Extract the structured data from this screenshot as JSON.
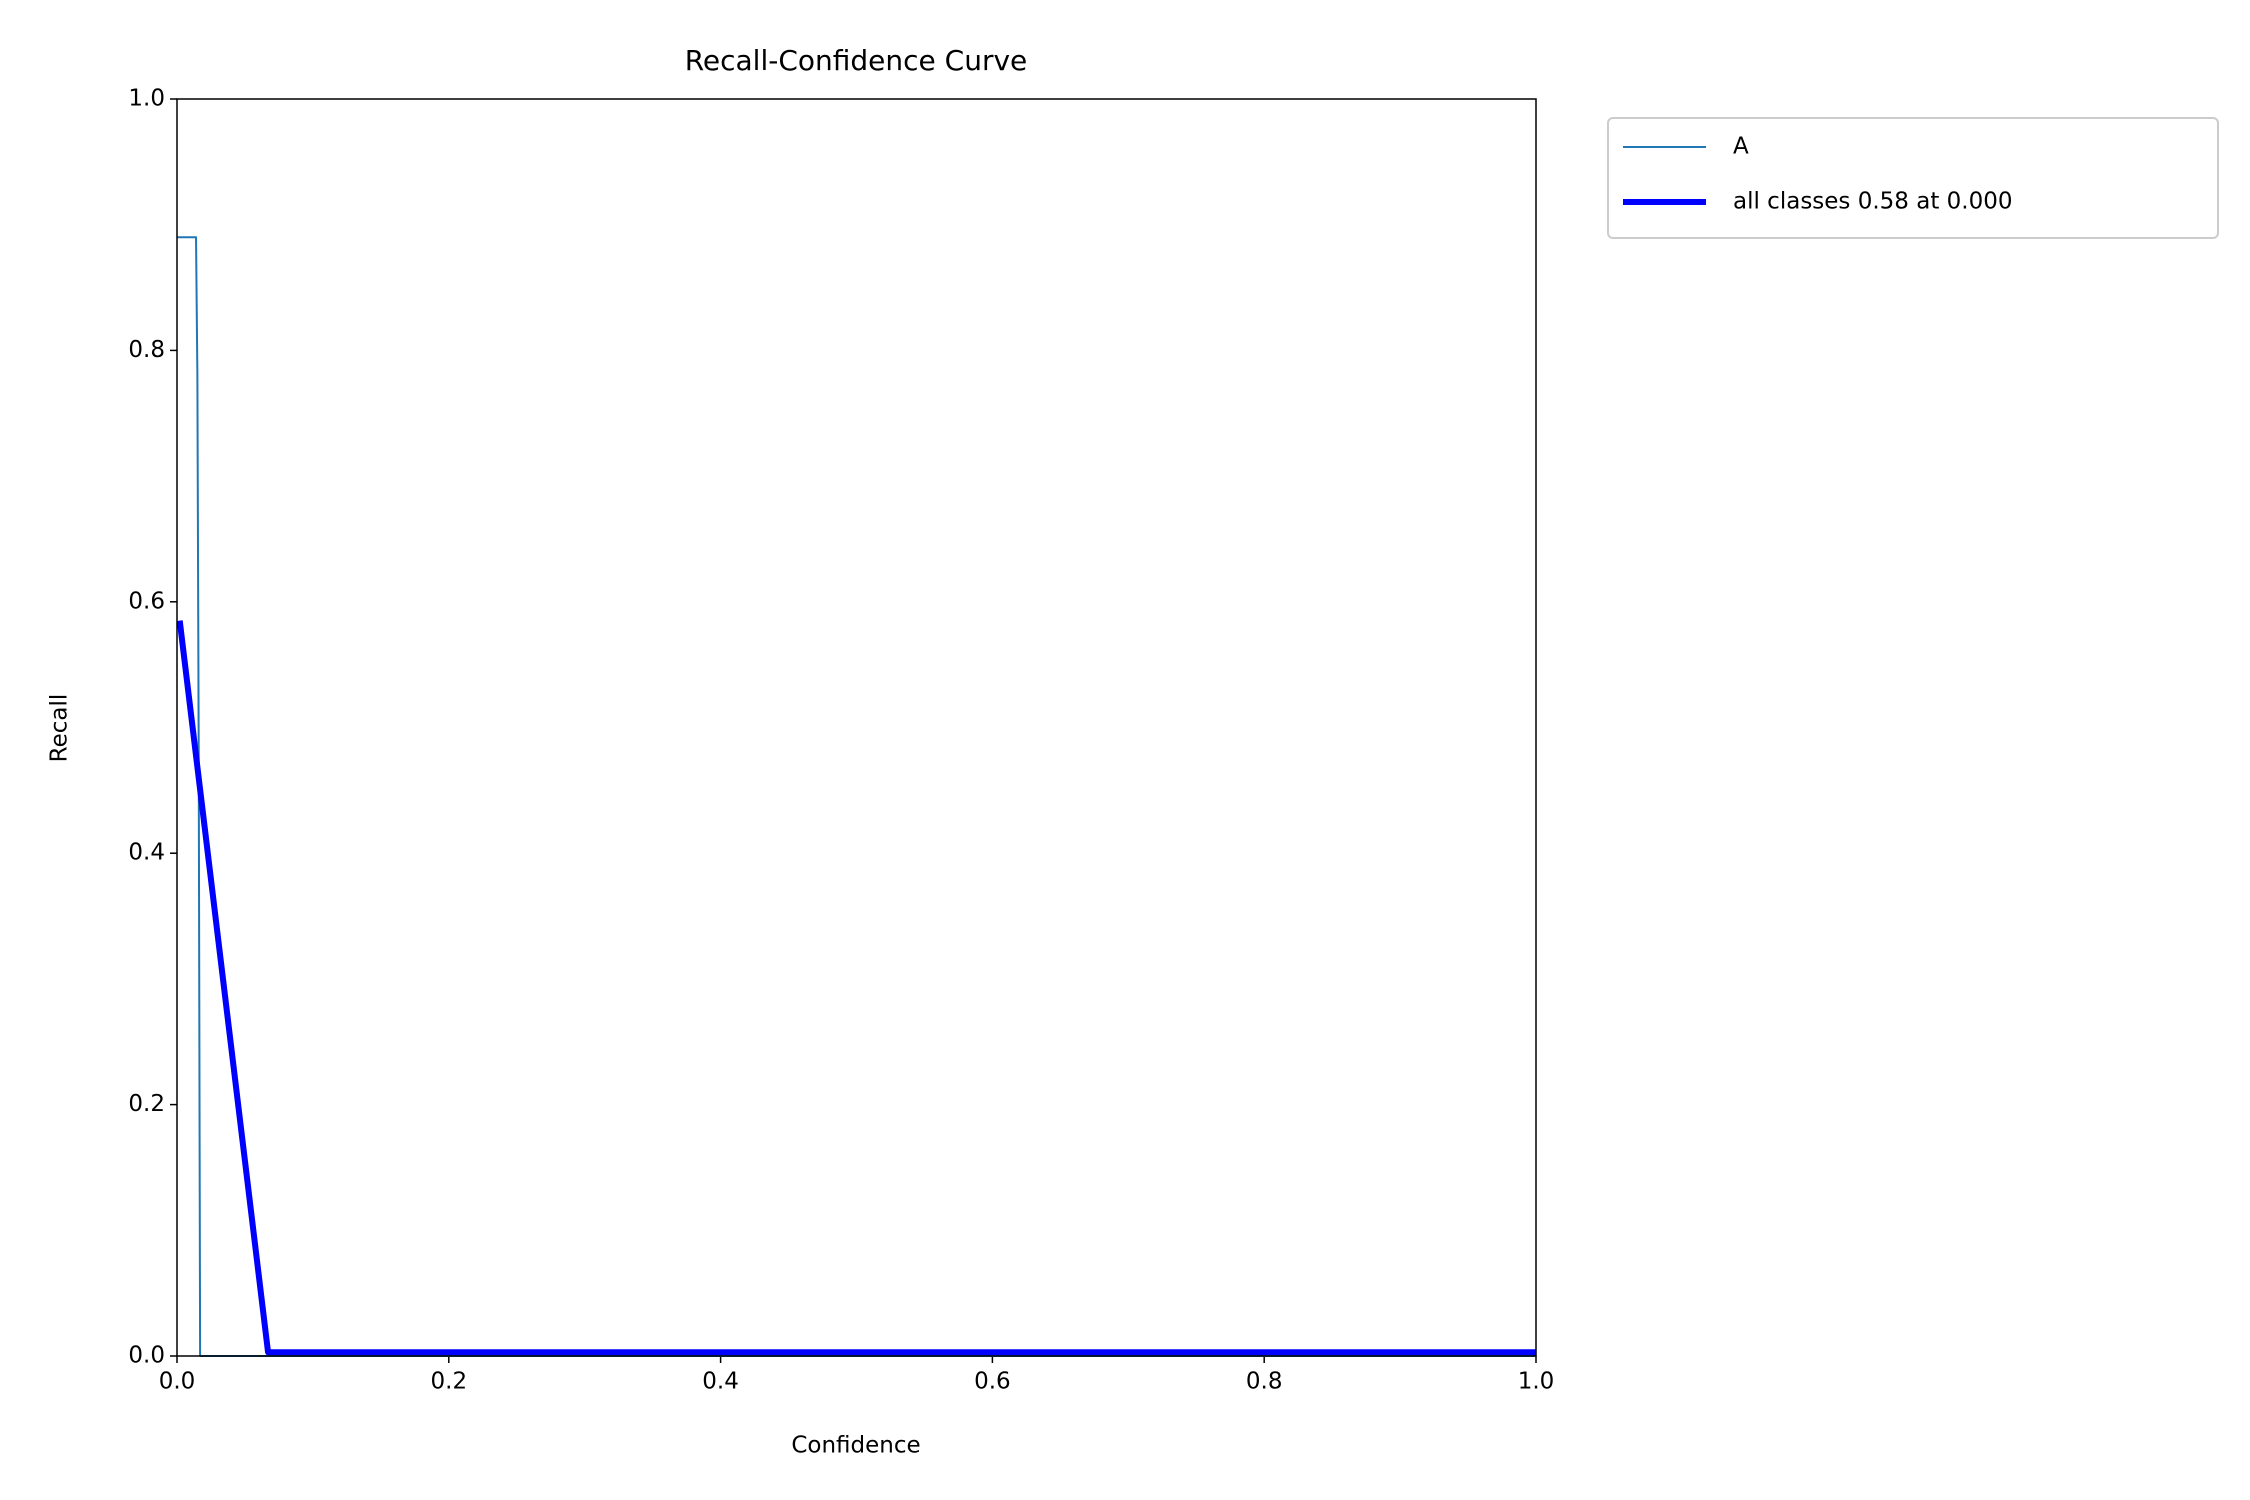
{
  "chart_data": {
    "type": "line",
    "title": "Recall-Confidence Curve",
    "x_label": "Confidence",
    "y_label": "Recall",
    "xlim": [
      0,
      1
    ],
    "ylim": [
      0,
      1
    ],
    "xticks": [
      {
        "value": 0,
        "label": "0.0"
      },
      0.2,
      0.4,
      0.6,
      0.8,
      {
        "value": 1,
        "label": "1.0"
      }
    ],
    "yticks": [
      {
        "value": 0,
        "label": "0.0"
      },
      0.2,
      0.4,
      0.6,
      0.8,
      {
        "value": 1,
        "label": "1.0"
      }
    ],
    "legend": "upper right outside",
    "series": [
      {
        "name": "A",
        "color": "#1f77b4",
        "x": [
          0,
          0.014,
          0.015,
          0.016,
          0.017,
          1.0
        ],
        "values": [
          0.89,
          0.89,
          0.78,
          0.47,
          0,
          0
        ]
      },
      {
        "name": "all classes 0.58 at 0.000",
        "color": "#0000ff",
        "x": [
          0.002,
          0.067,
          1.0
        ],
        "values": [
          0.585,
          0.003,
          0.003
        ]
      }
    ]
  }
}
